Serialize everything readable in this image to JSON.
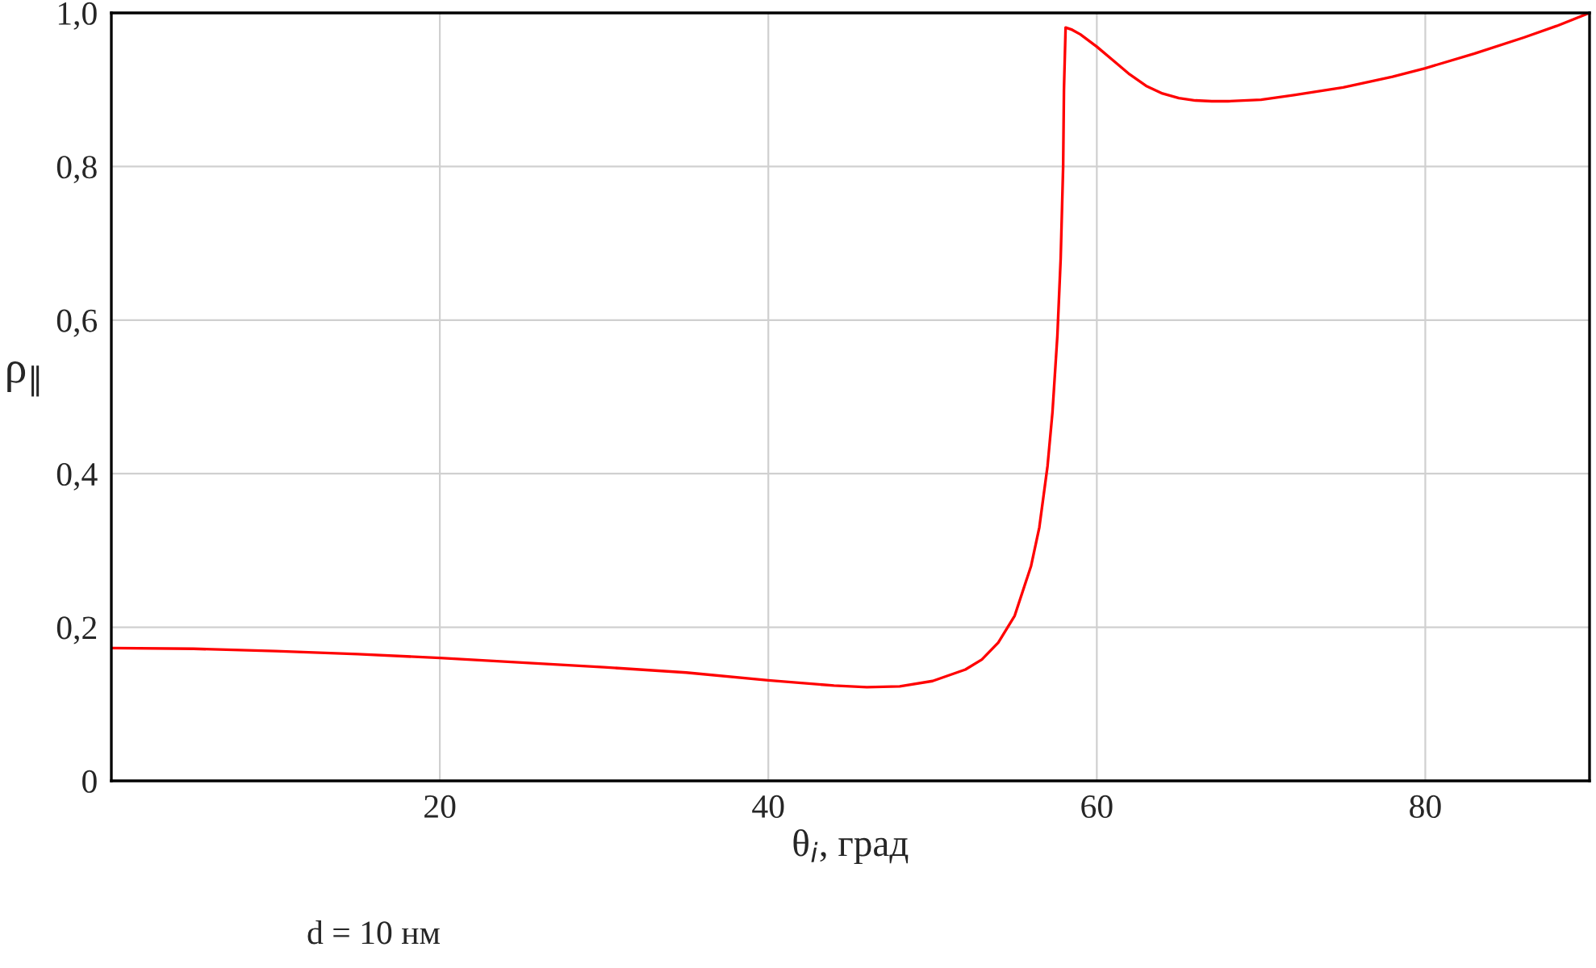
{
  "chart_data": {
    "type": "line",
    "xlabel": "θ$_{i}$, град",
    "ylabel": "ρ$_{∥}$",
    "xlim": [
      0,
      90
    ],
    "ylim": [
      0,
      1.0
    ],
    "xticks": [
      20,
      40,
      60,
      80
    ],
    "yticks": [
      {
        "value": 0,
        "label": "0"
      },
      {
        "value": 0.2,
        "label": "0,2"
      },
      {
        "value": 0.4,
        "label": "0,4"
      },
      {
        "value": 0.6,
        "label": "0,6"
      },
      {
        "value": 0.8,
        "label": "0,8"
      },
      {
        "value": 1.0,
        "label": "1,0"
      }
    ],
    "grid": true,
    "line_style": "solid",
    "marker": "none",
    "series": [
      {
        "color": "#ff0000",
        "x": [
          0,
          5,
          10,
          15,
          20,
          25,
          30,
          35,
          40,
          44,
          46,
          48,
          50,
          52,
          53,
          54,
          55,
          56,
          56.5,
          57,
          57.3,
          57.6,
          57.8,
          57.95,
          58.0,
          58.1,
          58.5,
          59,
          60,
          61,
          62,
          63,
          64,
          65,
          66,
          67,
          68,
          70,
          72,
          75,
          78,
          80,
          83,
          86,
          88,
          90
        ],
        "values": [
          0.173,
          0.172,
          0.169,
          0.165,
          0.16,
          0.154,
          0.148,
          0.141,
          0.131,
          0.124,
          0.122,
          0.123,
          0.13,
          0.145,
          0.158,
          0.18,
          0.215,
          0.28,
          0.33,
          0.41,
          0.48,
          0.58,
          0.68,
          0.8,
          0.9,
          0.981,
          0.978,
          0.972,
          0.956,
          0.938,
          0.92,
          0.905,
          0.895,
          0.889,
          0.886,
          0.885,
          0.885,
          0.887,
          0.893,
          0.903,
          0.917,
          0.928,
          0.947,
          0.968,
          0.983,
          1.0
        ]
      }
    ],
    "annotations": [
      "d = 10 нм"
    ]
  }
}
